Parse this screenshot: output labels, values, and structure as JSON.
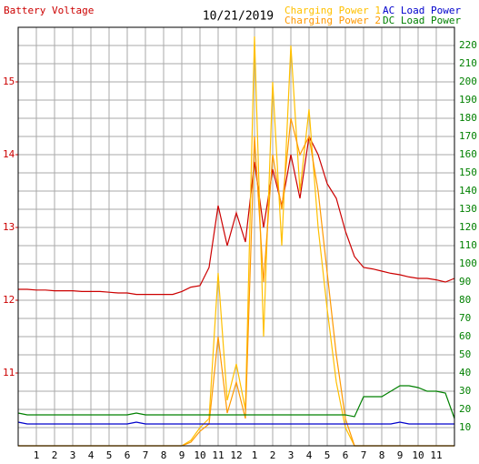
{
  "chart_data": {
    "type": "line",
    "subtitle": "10/21/2019",
    "x": [
      0,
      0.5,
      1,
      1.5,
      2,
      2.5,
      3,
      3.5,
      4,
      4.5,
      5,
      5.5,
      6,
      6.5,
      7,
      7.5,
      8,
      8.5,
      9,
      9.5,
      10,
      10.5,
      11,
      11.5,
      12,
      12.5,
      13,
      13.5,
      14,
      14.5,
      15,
      15.5,
      16,
      16.5,
      17,
      17.5,
      18,
      18.5,
      19,
      19.5,
      20,
      20.5,
      21,
      21.5,
      22,
      22.5,
      23,
      23.5,
      24
    ],
    "xlim": [
      0,
      24
    ],
    "xticks": [
      {
        "value": 1,
        "label": "1"
      },
      {
        "value": 2,
        "label": "2"
      },
      {
        "value": 3,
        "label": "3"
      },
      {
        "value": 4,
        "label": "4"
      },
      {
        "value": 5,
        "label": "5"
      },
      {
        "value": 6,
        "label": "6"
      },
      {
        "value": 7,
        "label": "7"
      },
      {
        "value": 8,
        "label": "8"
      },
      {
        "value": 9,
        "label": "9"
      },
      {
        "value": 10,
        "label": "10"
      },
      {
        "value": 11,
        "label": "11"
      },
      {
        "value": 12,
        "label": "12"
      },
      {
        "value": 13,
        "label": "1"
      },
      {
        "value": 14,
        "label": "2"
      },
      {
        "value": 15,
        "label": "3"
      },
      {
        "value": 16,
        "label": "4"
      },
      {
        "value": 17,
        "label": "5"
      },
      {
        "value": 18,
        "label": "6"
      },
      {
        "value": 19,
        "label": "7"
      },
      {
        "value": 20,
        "label": "8"
      },
      {
        "value": 21,
        "label": "9"
      },
      {
        "value": 22,
        "label": "10"
      },
      {
        "value": 23,
        "label": "11"
      }
    ],
    "ylim": [
      10,
      15.75
    ],
    "yticks": [
      11,
      12,
      13,
      14,
      15
    ],
    "ytick_color": "#cc0000",
    "y2lim": [
      0,
      230
    ],
    "y2ticks": [
      10,
      20,
      30,
      40,
      50,
      60,
      70,
      80,
      90,
      100,
      110,
      120,
      130,
      140,
      150,
      160,
      170,
      180,
      190,
      200,
      210,
      220
    ],
    "y2tick_color": "#008000",
    "grid": true,
    "series": [
      {
        "name": "Battery Voltage",
        "color": "#cc0000",
        "axis": "y",
        "values": [
          12.15,
          12.15,
          12.14,
          12.14,
          12.13,
          12.13,
          12.13,
          12.12,
          12.12,
          12.12,
          12.11,
          12.1,
          12.1,
          12.08,
          12.08,
          12.08,
          12.08,
          12.08,
          12.12,
          12.18,
          12.2,
          12.45,
          13.3,
          12.75,
          13.2,
          12.8,
          13.9,
          13.0,
          13.8,
          13.3,
          14.0,
          13.4,
          14.25,
          14.0,
          13.6,
          13.4,
          12.95,
          12.6,
          12.45,
          12.43,
          12.4,
          12.37,
          12.35,
          12.32,
          12.3,
          12.3,
          12.28,
          12.25,
          12.3
        ]
      },
      {
        "name": "Charging Power 1",
        "color": "#ffc000",
        "axis": "y2",
        "values": [
          0,
          0,
          0,
          0,
          0,
          0,
          0,
          0,
          0,
          0,
          0,
          0,
          0,
          0,
          0,
          0,
          0,
          0,
          0,
          3,
          10,
          15,
          95,
          25,
          45,
          20,
          225,
          60,
          200,
          110,
          220,
          140,
          185,
          120,
          75,
          35,
          10,
          0,
          0,
          0,
          0,
          0,
          0,
          0,
          0,
          0,
          0,
          0,
          0
        ]
      },
      {
        "name": "Charging Power 2",
        "color": "#ff9900",
        "axis": "y2",
        "values": [
          0,
          0,
          0,
          0,
          0,
          0,
          0,
          0,
          0,
          0,
          0,
          0,
          0,
          0,
          0,
          0,
          0,
          0,
          0,
          2,
          8,
          12,
          60,
          18,
          35,
          15,
          170,
          90,
          160,
          130,
          180,
          160,
          170,
          140,
          95,
          50,
          15,
          0,
          0,
          0,
          0,
          0,
          0,
          0,
          0,
          0,
          0,
          0,
          0
        ]
      },
      {
        "name": "AC Load Power",
        "color": "#0000cc",
        "axis": "y2",
        "values": [
          13,
          12,
          12,
          12,
          12,
          12,
          12,
          12,
          12,
          12,
          12,
          12,
          12,
          13,
          12,
          12,
          12,
          12,
          12,
          12,
          12,
          12,
          12,
          12,
          12,
          12,
          12,
          12,
          12,
          12,
          12,
          12,
          12,
          12,
          12,
          12,
          12,
          12,
          12,
          12,
          12,
          12,
          13,
          12,
          12,
          12,
          12,
          12,
          12
        ]
      },
      {
        "name": "DC Load Power",
        "color": "#008000",
        "axis": "y2",
        "values": [
          18,
          17,
          17,
          17,
          17,
          17,
          17,
          17,
          17,
          17,
          17,
          17,
          17,
          18,
          17,
          17,
          17,
          17,
          17,
          17,
          17,
          17,
          17,
          17,
          17,
          17,
          17,
          17,
          17,
          17,
          17,
          17,
          17,
          17,
          17,
          17,
          17,
          16,
          27,
          27,
          27,
          30,
          33,
          33,
          32,
          30,
          30,
          29,
          15
        ]
      }
    ]
  }
}
